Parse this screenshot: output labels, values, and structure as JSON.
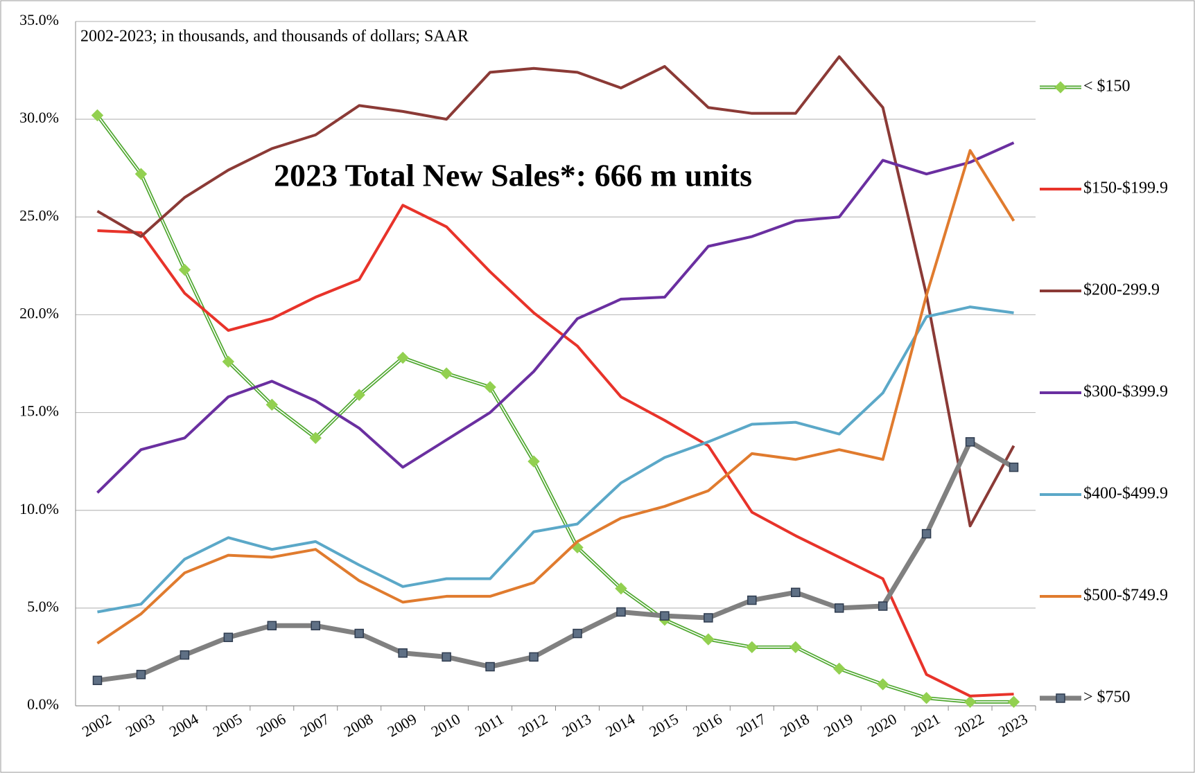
{
  "chart_data": {
    "type": "line",
    "title": "2023 Total New Sales*: 666 m units",
    "subtitle": "2002-2023; in thousands, and thousands of dollars; SAAR",
    "categories": [
      "2002",
      "2003",
      "2004",
      "2005",
      "2006",
      "2007",
      "2008",
      "2009",
      "2010",
      "2011",
      "2012",
      "2013",
      "2014",
      "2015",
      "2016",
      "2017",
      "2018",
      "2019",
      "2020",
      "2021",
      "2022",
      "2023"
    ],
    "ylim": [
      0,
      35
    ],
    "yticks": [
      {
        "value": 0,
        "label": "0.0%"
      },
      {
        "value": 5,
        "label": "5.0%"
      },
      {
        "value": 10,
        "label": "10.0%"
      },
      {
        "value": 15,
        "label": "15.0%"
      },
      {
        "value": 20,
        "label": "20.0%"
      },
      {
        "value": 25,
        "label": "25.0%"
      },
      {
        "value": 30,
        "label": "30.0%"
      },
      {
        "value": 35,
        "label": "35.0%"
      }
    ],
    "grid": true,
    "legend": "right",
    "series": [
      {
        "name": "< $150",
        "color": "#4ea72e",
        "marker": "diamond",
        "marker_color": "#92d050",
        "style": "double",
        "values": [
          30.2,
          27.2,
          22.3,
          17.6,
          15.4,
          13.7,
          15.9,
          17.8,
          17.0,
          16.3,
          12.5,
          8.1,
          6.0,
          4.4,
          3.4,
          3.0,
          3.0,
          1.9,
          1.1,
          0.4,
          0.2,
          0.2
        ]
      },
      {
        "name": "$150-$199.9",
        "color": "#e8332a",
        "values": [
          24.3,
          24.2,
          21.1,
          19.2,
          19.8,
          20.9,
          21.8,
          25.6,
          24.5,
          22.2,
          20.1,
          18.4,
          15.8,
          14.6,
          13.3,
          9.9,
          8.7,
          7.6,
          6.5,
          1.6,
          0.5,
          0.6
        ]
      },
      {
        "name": "$200-299.9",
        "color": "#8b3a36",
        "values": [
          25.3,
          24.0,
          26.0,
          27.4,
          28.5,
          29.2,
          30.7,
          30.4,
          30.0,
          32.4,
          32.6,
          32.4,
          31.6,
          32.7,
          30.6,
          30.3,
          30.3,
          33.2,
          30.6,
          21.0,
          9.2,
          13.3
        ]
      },
      {
        "name": "$300-$399.9",
        "color": "#6a2fa0",
        "values": [
          10.9,
          13.1,
          13.7,
          15.8,
          16.6,
          15.6,
          14.2,
          12.2,
          13.6,
          15.0,
          17.1,
          19.8,
          20.8,
          20.9,
          23.5,
          24.0,
          24.8,
          25.0,
          27.9,
          27.2,
          27.8,
          28.8
        ]
      },
      {
        "name": "$400-$499.9",
        "color": "#5ba8c8",
        "values": [
          4.8,
          5.2,
          7.5,
          8.6,
          8.0,
          8.4,
          7.2,
          6.1,
          6.5,
          6.5,
          8.9,
          9.3,
          11.4,
          12.7,
          13.5,
          14.4,
          14.5,
          13.9,
          16.0,
          19.9,
          20.4,
          20.1
        ]
      },
      {
        "name": "$500-$749.9",
        "color": "#e07b2e",
        "values": [
          3.2,
          4.7,
          6.8,
          7.7,
          7.6,
          8.0,
          6.4,
          5.3,
          5.6,
          5.6,
          6.3,
          8.4,
          9.6,
          10.2,
          11.0,
          12.9,
          12.6,
          13.1,
          12.6,
          21.0,
          28.4,
          24.8
        ]
      },
      {
        "name": "> $750",
        "color": "#808080",
        "marker": "square",
        "marker_color": "#5f7085",
        "style": "thick",
        "values": [
          1.3,
          1.6,
          2.6,
          3.5,
          4.1,
          4.1,
          3.7,
          2.7,
          2.5,
          2.0,
          2.5,
          3.7,
          4.8,
          4.6,
          4.5,
          5.4,
          5.8,
          5.0,
          5.1,
          8.8,
          13.5,
          12.2
        ]
      }
    ]
  }
}
